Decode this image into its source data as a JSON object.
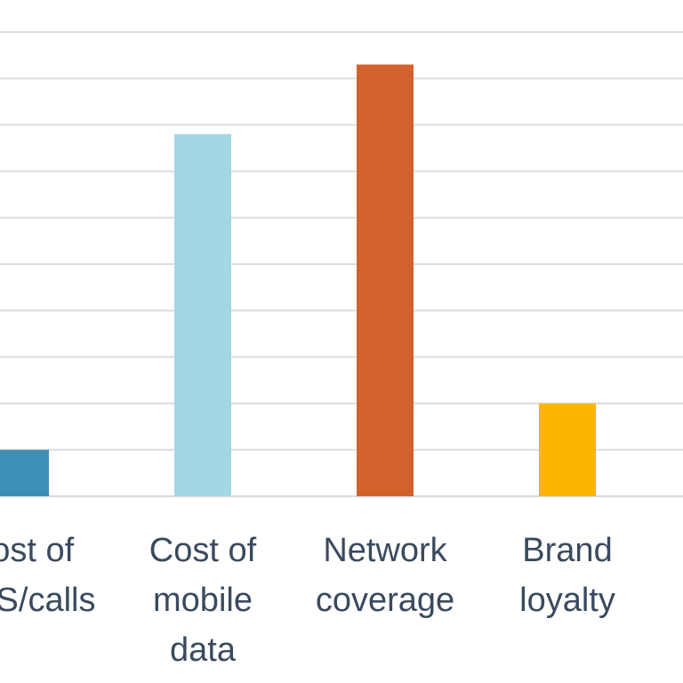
{
  "chart_data": {
    "type": "bar",
    "categories": [
      [
        "Cost of",
        "SMS/calls"
      ],
      [
        "Cost of",
        "mobile",
        "data"
      ],
      [
        "Network",
        "coverage"
      ],
      [
        "Brand",
        "loyalty"
      ]
    ],
    "values": [
      1,
      7.8,
      9.3,
      2
    ],
    "ylim": [
      0,
      10
    ],
    "grid": true,
    "grid_step": 1,
    "title": "",
    "xlabel": "",
    "ylabel": "",
    "colors": {
      "bars": [
        "#3e8fb5",
        "#a3d7e5",
        "#d2622c",
        "#fbb600"
      ],
      "grid": "#d9dde2",
      "label": "#3a4a5e",
      "baseline": "#d9dde2"
    }
  }
}
